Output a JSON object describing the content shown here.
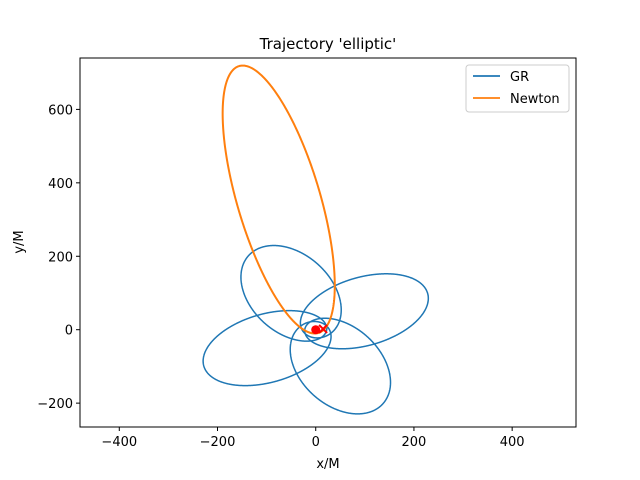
{
  "chart_data": {
    "type": "line",
    "title": "Trajectory 'elliptic'",
    "xlabel": "x/M",
    "ylabel": "y/M",
    "xlim": [
      -480,
      530
    ],
    "ylim": [
      -265,
      740
    ],
    "xticks": [
      -400,
      -200,
      0,
      200,
      400
    ],
    "yticks": [
      -200,
      0,
      200,
      400,
      600
    ],
    "grid": false,
    "legend_position": "top-right",
    "series": [
      {
        "name": "GR",
        "color": "#1f77b4",
        "orbit": {
          "rp": 22,
          "ra": 250,
          "omega0_deg": 72,
          "precession_deg_per_orbit": 72,
          "orbits": 5,
          "prograde_precession": true
        }
      },
      {
        "name": "Newton",
        "color": "#ff7f0e",
        "orbit": {
          "rp": 10,
          "ra": 735,
          "omega0_deg": 282,
          "orbits": 1
        }
      }
    ],
    "markers": [
      {
        "label": "",
        "type": "dot",
        "color": "#ff0000",
        "x": 0,
        "y": 0
      },
      {
        "label": "",
        "type": "cross",
        "color": "#ff0000",
        "x": 15,
        "y": 2
      }
    ]
  }
}
